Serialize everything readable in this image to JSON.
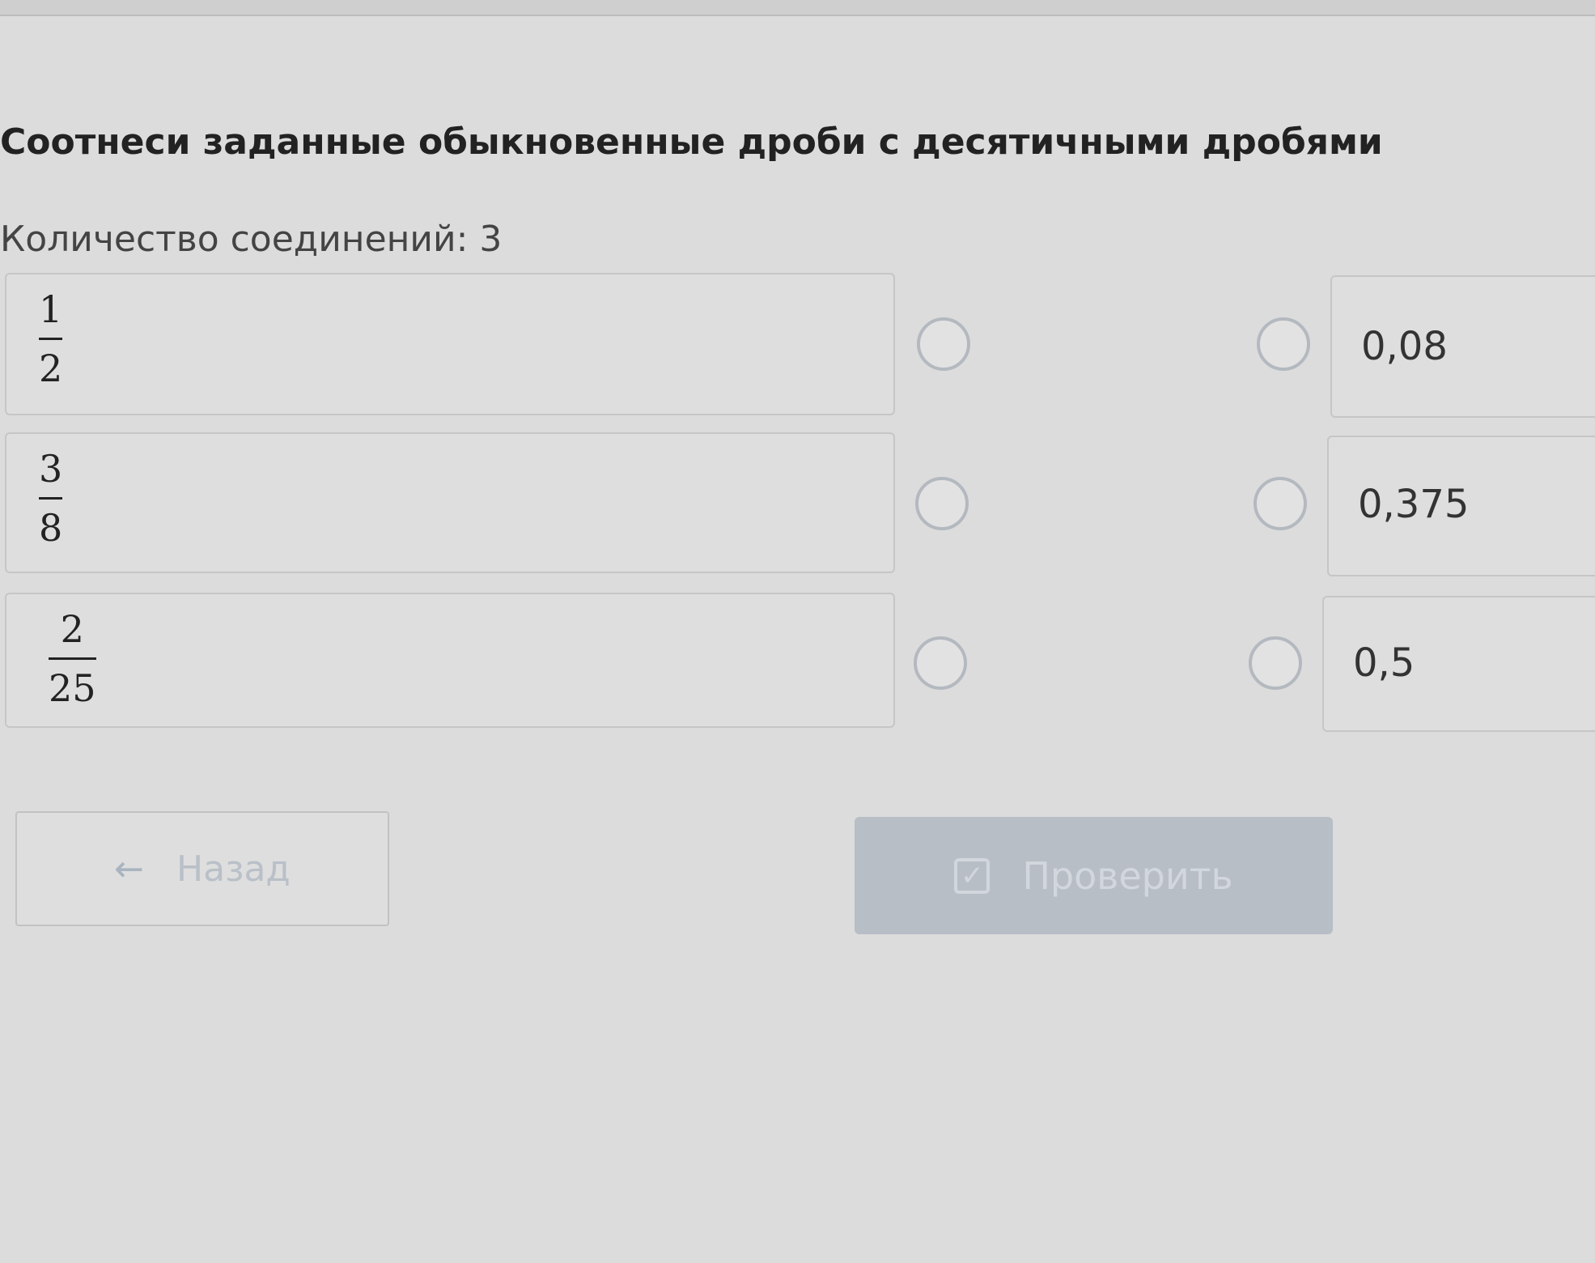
{
  "title": "Соотнеси заданные обыкновенные дроби с десятичными дробями",
  "connections_label": "Количество соединений: 3",
  "left_items": [
    {
      "numerator": "1",
      "denominator": "2"
    },
    {
      "numerator": "3",
      "denominator": "8"
    },
    {
      "numerator": "2",
      "denominator": "25"
    }
  ],
  "right_items": [
    {
      "label": "0,08"
    },
    {
      "label": "0,375"
    },
    {
      "label": "0,5"
    }
  ],
  "buttons": {
    "back_label": "Назад",
    "check_label": "Проверить",
    "back_icon": "arrow-left-icon",
    "check_icon": "checkbox-check-icon"
  },
  "colors": {
    "check_button": "#b8bec6",
    "connector": "#b4b9c0"
  }
}
